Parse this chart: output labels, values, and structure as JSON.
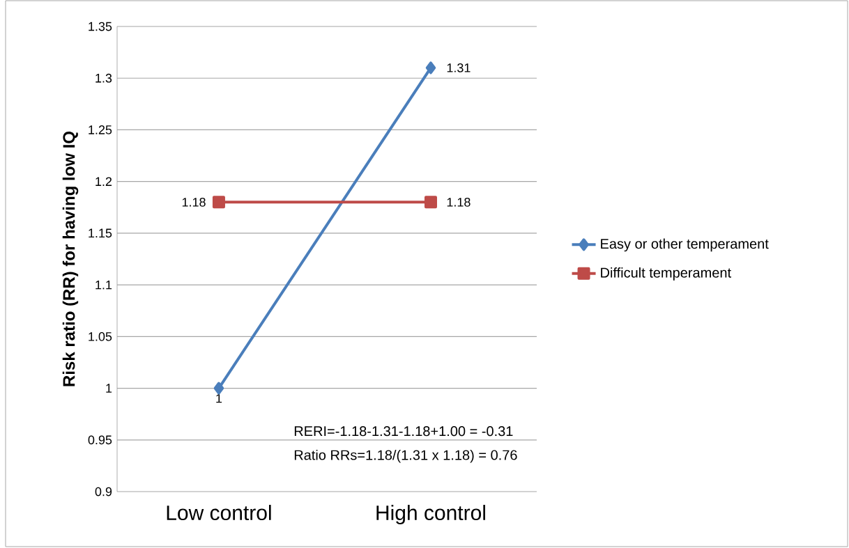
{
  "chart_data": {
    "type": "line",
    "ylabel": "Risk ratio (RR) for having low IQ",
    "categories": [
      "Low control",
      "High control"
    ],
    "series": [
      {
        "name": "Easy or other temperament",
        "color": "#4a7ebb",
        "marker": "diamond",
        "values": [
          1,
          1.31
        ]
      },
      {
        "name": "Difficult temperament",
        "color": "#be4b48",
        "marker": "square",
        "values": [
          1.18,
          1.18
        ]
      }
    ],
    "ylim": [
      0.9,
      1.35
    ],
    "yticks": [
      0.9,
      0.95,
      1,
      1.05,
      1.1,
      1.15,
      1.2,
      1.25,
      1.3,
      1.35
    ],
    "grid": "y",
    "legend": "right",
    "data_labels": true,
    "annotations": [
      "RERI=-1.18-1.31-1.18+1.00 = -0.31",
      "Ratio RRs=1.18/(1.31 x 1.18) = 0.76"
    ]
  }
}
